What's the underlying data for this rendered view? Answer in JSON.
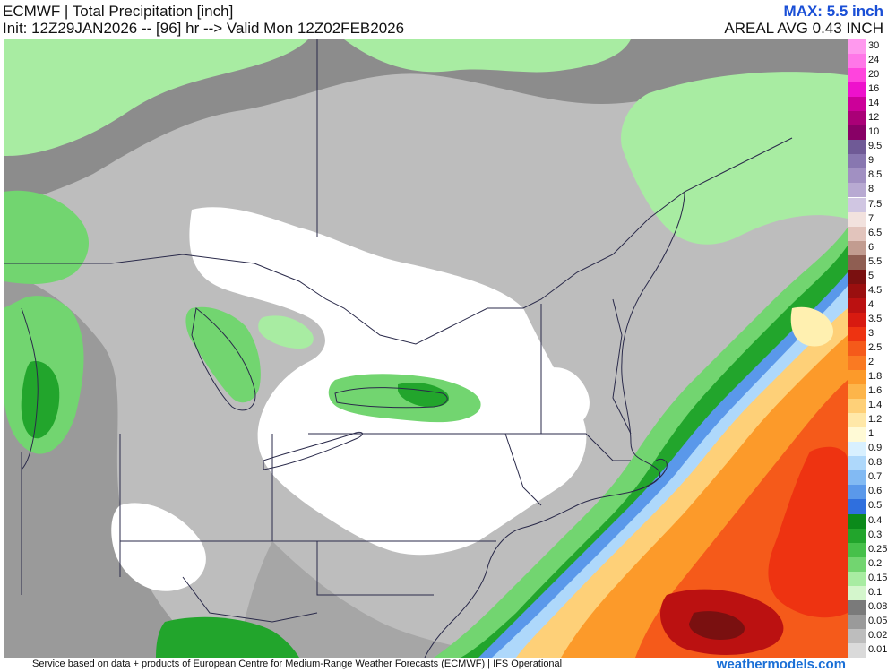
{
  "header": {
    "title": "ECMWF | Total Precipitation [inch]",
    "valid_line": "Init: 12Z29JAN2026 -- [96] hr --> Valid Mon 12Z02FEB2026",
    "max_label": "MAX: 5.5 inch",
    "areal_avg_label": "AREAL AVG 0.43 INCH"
  },
  "legend": {
    "levels": [
      {
        "label": "30",
        "color": "#ff99ee"
      },
      {
        "label": "24",
        "color": "#ff77e8"
      },
      {
        "label": "20",
        "color": "#ff44dd"
      },
      {
        "label": "16",
        "color": "#ee11cc"
      },
      {
        "label": "14",
        "color": "#cc0099"
      },
      {
        "label": "12",
        "color": "#aa0077"
      },
      {
        "label": "10",
        "color": "#880066"
      },
      {
        "label": "9.5",
        "color": "#6f5a96"
      },
      {
        "label": "9",
        "color": "#8877b0"
      },
      {
        "label": "8.5",
        "color": "#a190c2"
      },
      {
        "label": "8",
        "color": "#b8aad2"
      },
      {
        "label": "7.5",
        "color": "#d0c6e2"
      },
      {
        "label": "7",
        "color": "#f2e2de"
      },
      {
        "label": "6.5",
        "color": "#e2c4bc"
      },
      {
        "label": "6",
        "color": "#c29c90"
      },
      {
        "label": "5.5",
        "color": "#8f5e52"
      },
      {
        "label": "5",
        "color": "#7a1010"
      },
      {
        "label": "4.5",
        "color": "#9a0f0f"
      },
      {
        "label": "4",
        "color": "#bb1111"
      },
      {
        "label": "3.5",
        "color": "#d81a10"
      },
      {
        "label": "3",
        "color": "#ee3311"
      },
      {
        "label": "2.5",
        "color": "#f55a1a"
      },
      {
        "label": "2",
        "color": "#fa7a22"
      },
      {
        "label": "1.8",
        "color": "#fc9a2a"
      },
      {
        "label": "1.6",
        "color": "#fdb54a"
      },
      {
        "label": "1.4",
        "color": "#fed078"
      },
      {
        "label": "1.2",
        "color": "#ffe8a8"
      },
      {
        "label": "1",
        "color": "#fffad6"
      },
      {
        "label": "0.9",
        "color": "#d8f0ff"
      },
      {
        "label": "0.8",
        "color": "#aed8fb"
      },
      {
        "label": "0.7",
        "color": "#82baf3"
      },
      {
        "label": "0.6",
        "color": "#5a98ea"
      },
      {
        "label": "0.5",
        "color": "#2f6fde"
      },
      {
        "label": "0.4",
        "color": "#0b8a1a"
      },
      {
        "label": "0.3",
        "color": "#22a52c"
      },
      {
        "label": "0.25",
        "color": "#46c04a"
      },
      {
        "label": "0.2",
        "color": "#72d570"
      },
      {
        "label": "0.15",
        "color": "#a8eca2"
      },
      {
        "label": "0.1",
        "color": "#d4f6cc"
      },
      {
        "label": "0.08",
        "color": "#7a7a7a"
      },
      {
        "label": "0.05",
        "color": "#9a9a9a"
      },
      {
        "label": "0.02",
        "color": "#bdbdbd"
      },
      {
        "label": "0.01",
        "color": "#dadada"
      }
    ]
  },
  "footer": {
    "credit": "Service based on data + products of European Centre for Medium-Range Weather Forecasts (ECMWF) | IFS Operational",
    "site": "weathermodels.com"
  }
}
